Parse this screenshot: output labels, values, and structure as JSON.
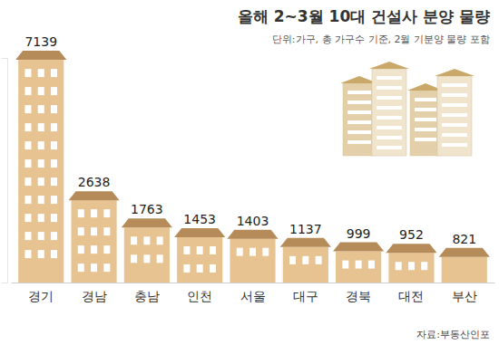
{
  "chart_data": {
    "type": "bar",
    "title": "올해 2~3월 10대 건설사 분양 물량",
    "subtitle": "단위:가구, 총 가구수 기준, 2월 기분양 물량 포함",
    "annotations": [
      "자료:부동산인포"
    ],
    "categories": [
      "경기",
      "경남",
      "충남",
      "인천",
      "서울",
      "대구",
      "경북",
      "대전",
      "부산"
    ],
    "values": [
      7139,
      2638,
      1763,
      1453,
      1403,
      1137,
      999,
      952,
      821
    ],
    "color": "#e6c391",
    "ylim": [
      0,
      7200
    ],
    "tick_labels": "x",
    "data_labels": true,
    "grid": false
  }
}
